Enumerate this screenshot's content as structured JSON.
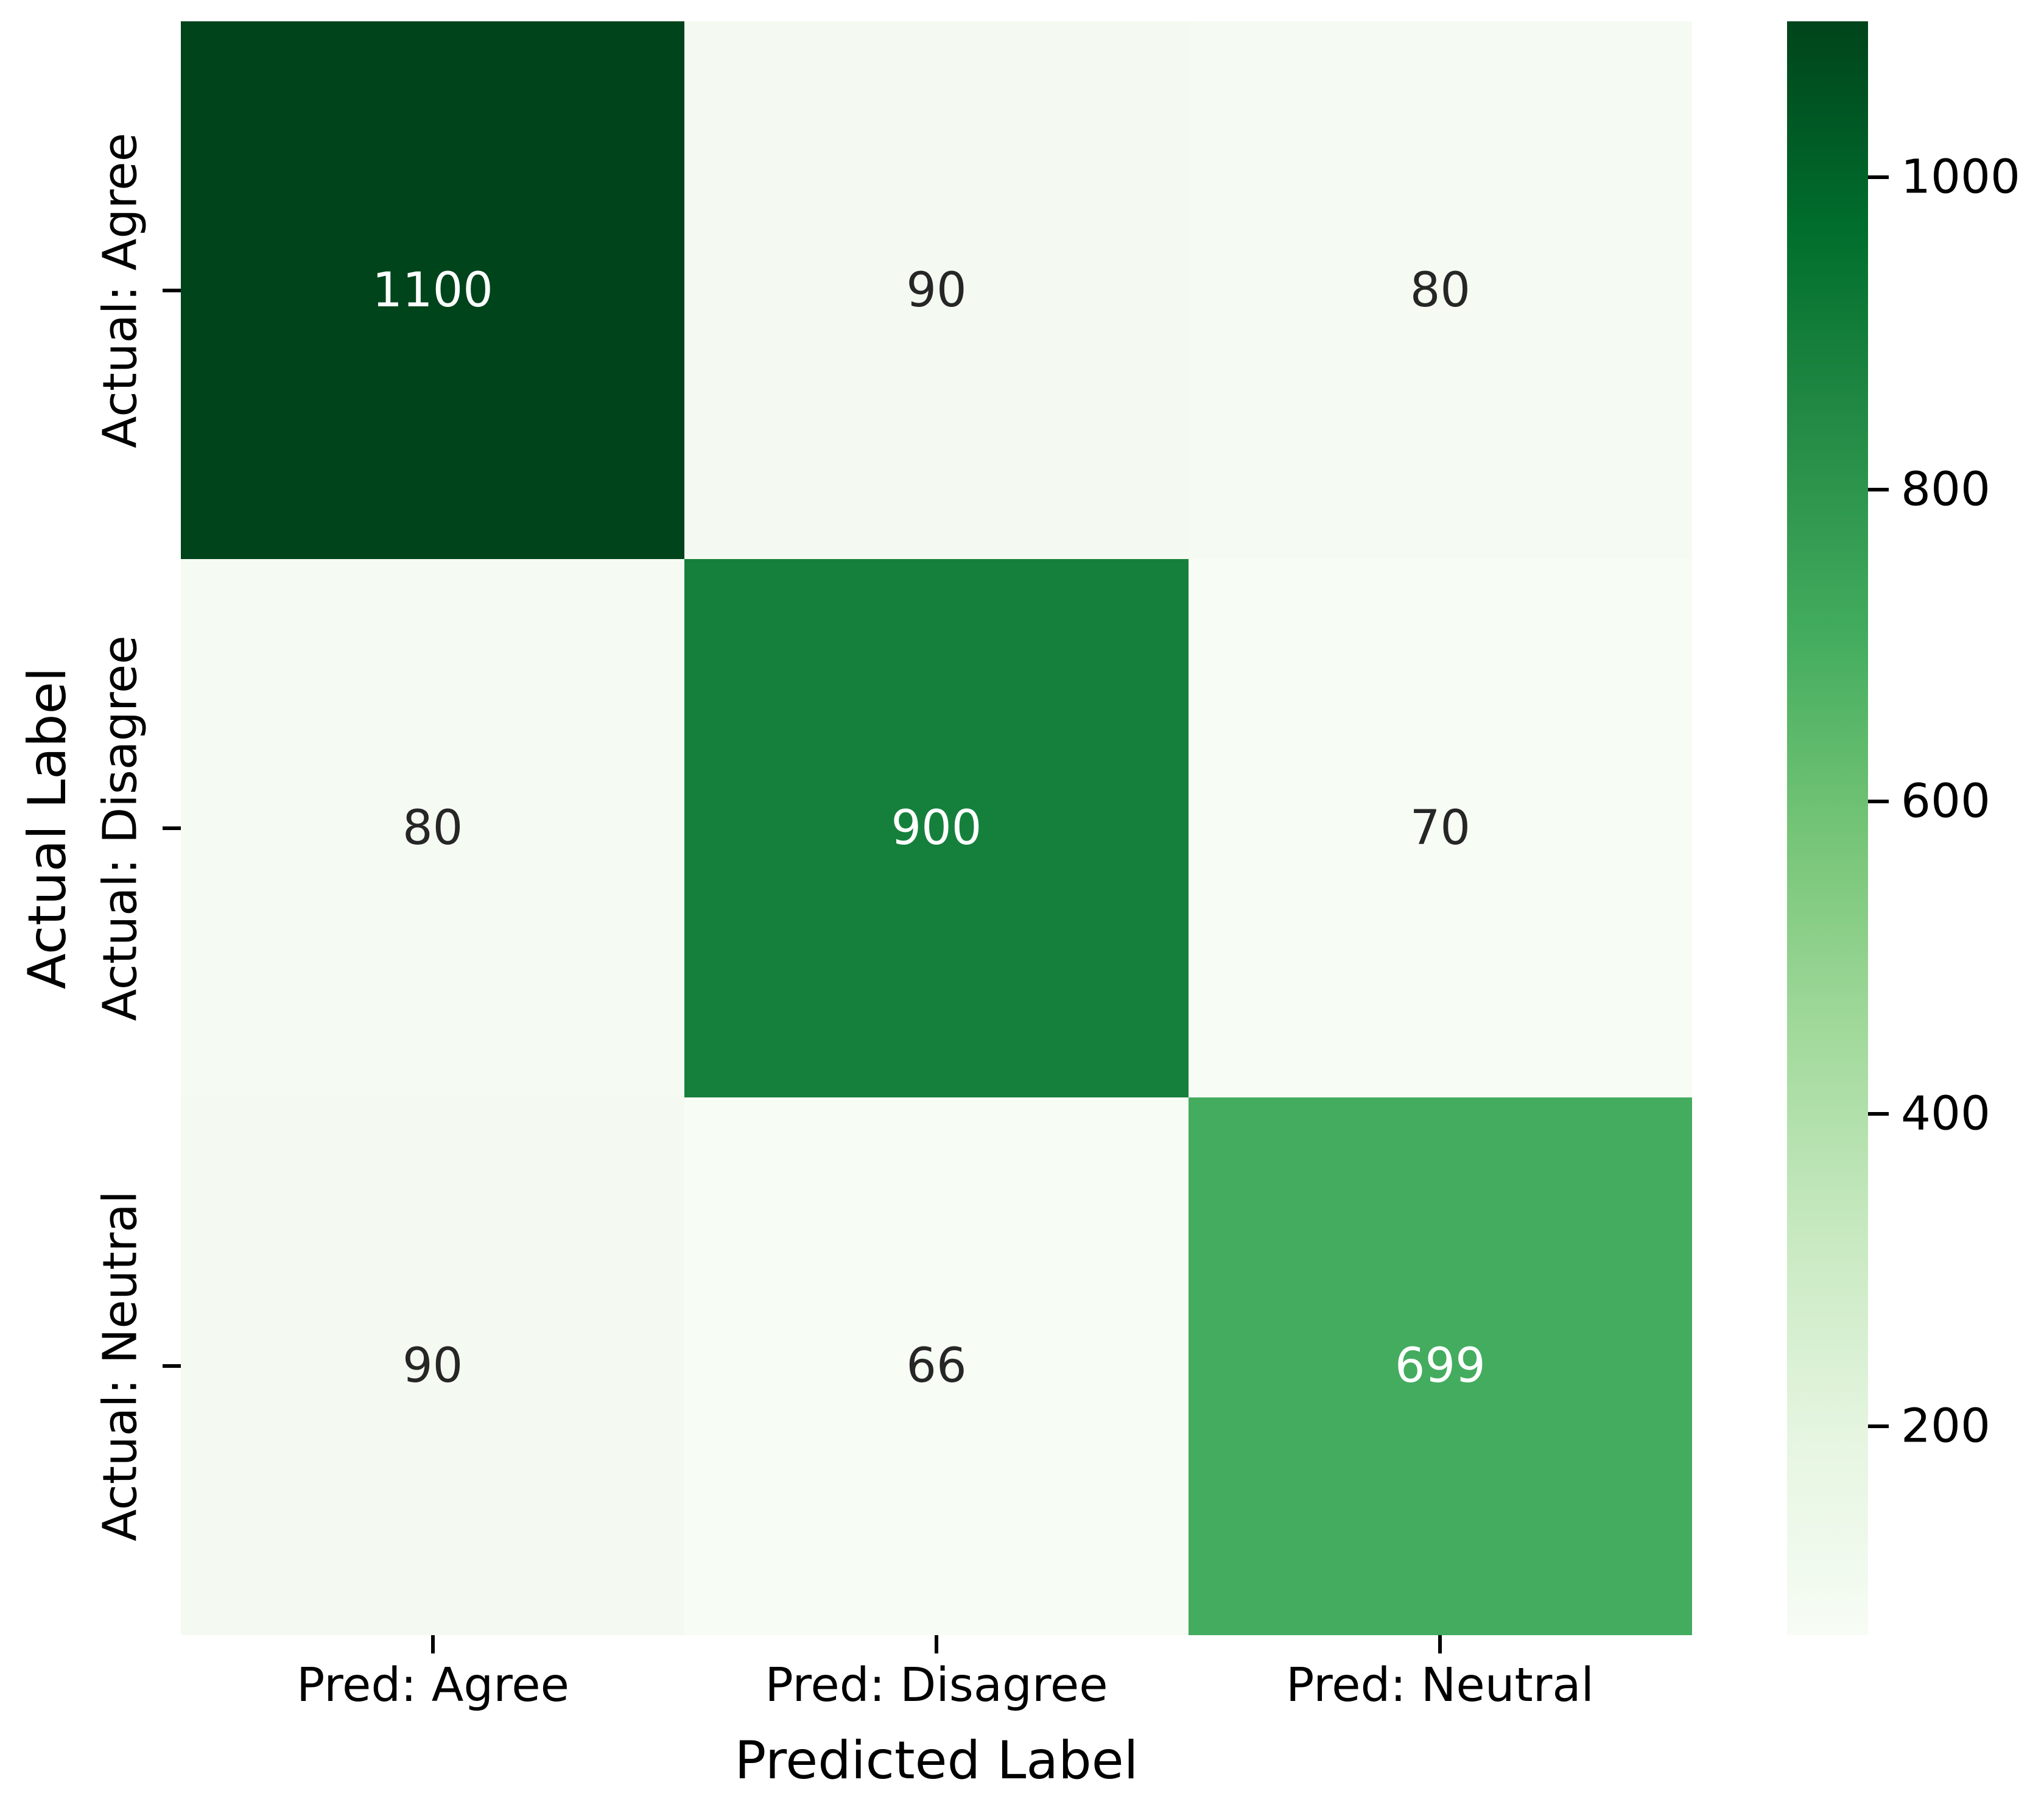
{
  "chart_data": {
    "type": "heatmap",
    "colormap": "Greens",
    "xlabel": "Predicted Label",
    "ylabel": "Actual Label",
    "x_tick_labels": [
      "Pred: Agree",
      "Pred: Disagree",
      "Pred: Neutral"
    ],
    "y_tick_labels": [
      "Actual: Agree",
      "Actual: Disagree",
      "Actual: Neutral"
    ],
    "matrix": [
      [
        1100,
        90,
        80
      ],
      [
        80,
        900,
        70
      ],
      [
        90,
        66,
        699
      ]
    ],
    "cell_colors": [
      [
        "#00441b",
        "#f4faf1",
        "#f5fbf2"
      ],
      [
        "#f5fbf2",
        "#15803c",
        "#f7fcf4"
      ],
      [
        "#f4faf1",
        "#f7fcf5",
        "#44ac5f"
      ]
    ],
    "cell_text_colors": [
      [
        "#ffffff",
        "#262626",
        "#262626"
      ],
      [
        "#262626",
        "#ffffff",
        "#262626"
      ],
      [
        "#262626",
        "#262626",
        "#ffffff"
      ]
    ],
    "colorbar": {
      "vmin": 66,
      "vmax": 1100,
      "ticks": [
        1000,
        800,
        600,
        400,
        200
      ],
      "gradient_stops_top_to_bottom": [
        "#00441b",
        "#006d2c",
        "#238b45",
        "#41ab5d",
        "#74c476",
        "#a1d99b",
        "#c7e9c0",
        "#e5f5e0",
        "#f7fcf5"
      ]
    }
  }
}
